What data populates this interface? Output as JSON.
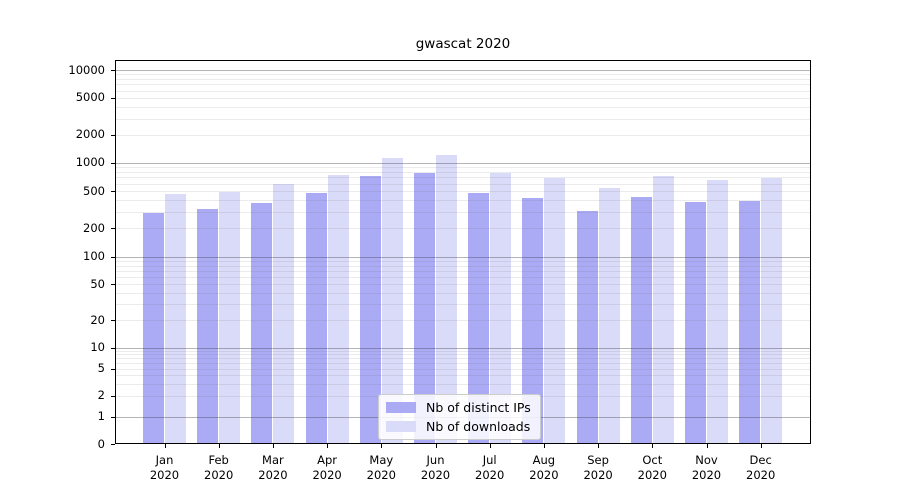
{
  "chart_data": {
    "type": "bar",
    "title": "gwascat 2020",
    "xlabel": "",
    "ylabel": "",
    "yscale": "symlog",
    "ylim": [
      0,
      13000
    ],
    "grid": "on",
    "legend_position": "lower center inside plot",
    "categories": [
      "Jan 2020",
      "Feb 2020",
      "Mar 2020",
      "Apr 2020",
      "May 2020",
      "Jun 2020",
      "Jul 2020",
      "Aug 2020",
      "Sep 2020",
      "Oct 2020",
      "Nov 2020",
      "Dec 2020"
    ],
    "yticks": [
      0,
      1,
      2,
      5,
      10,
      20,
      50,
      100,
      200,
      500,
      1000,
      2000,
      5000,
      10000
    ],
    "series": [
      {
        "name": "Nb of distinct IPs",
        "color": "#aaaaf5",
        "values": [
          290,
          320,
          370,
          480,
          715,
          770,
          475,
          420,
          310,
          430,
          380,
          390
        ]
      },
      {
        "name": "Nb of downloads",
        "color": "#dadaf9",
        "values": [
          470,
          490,
          590,
          740,
          1130,
          1220,
          775,
          680,
          545,
          730,
          660,
          690
        ]
      }
    ]
  }
}
